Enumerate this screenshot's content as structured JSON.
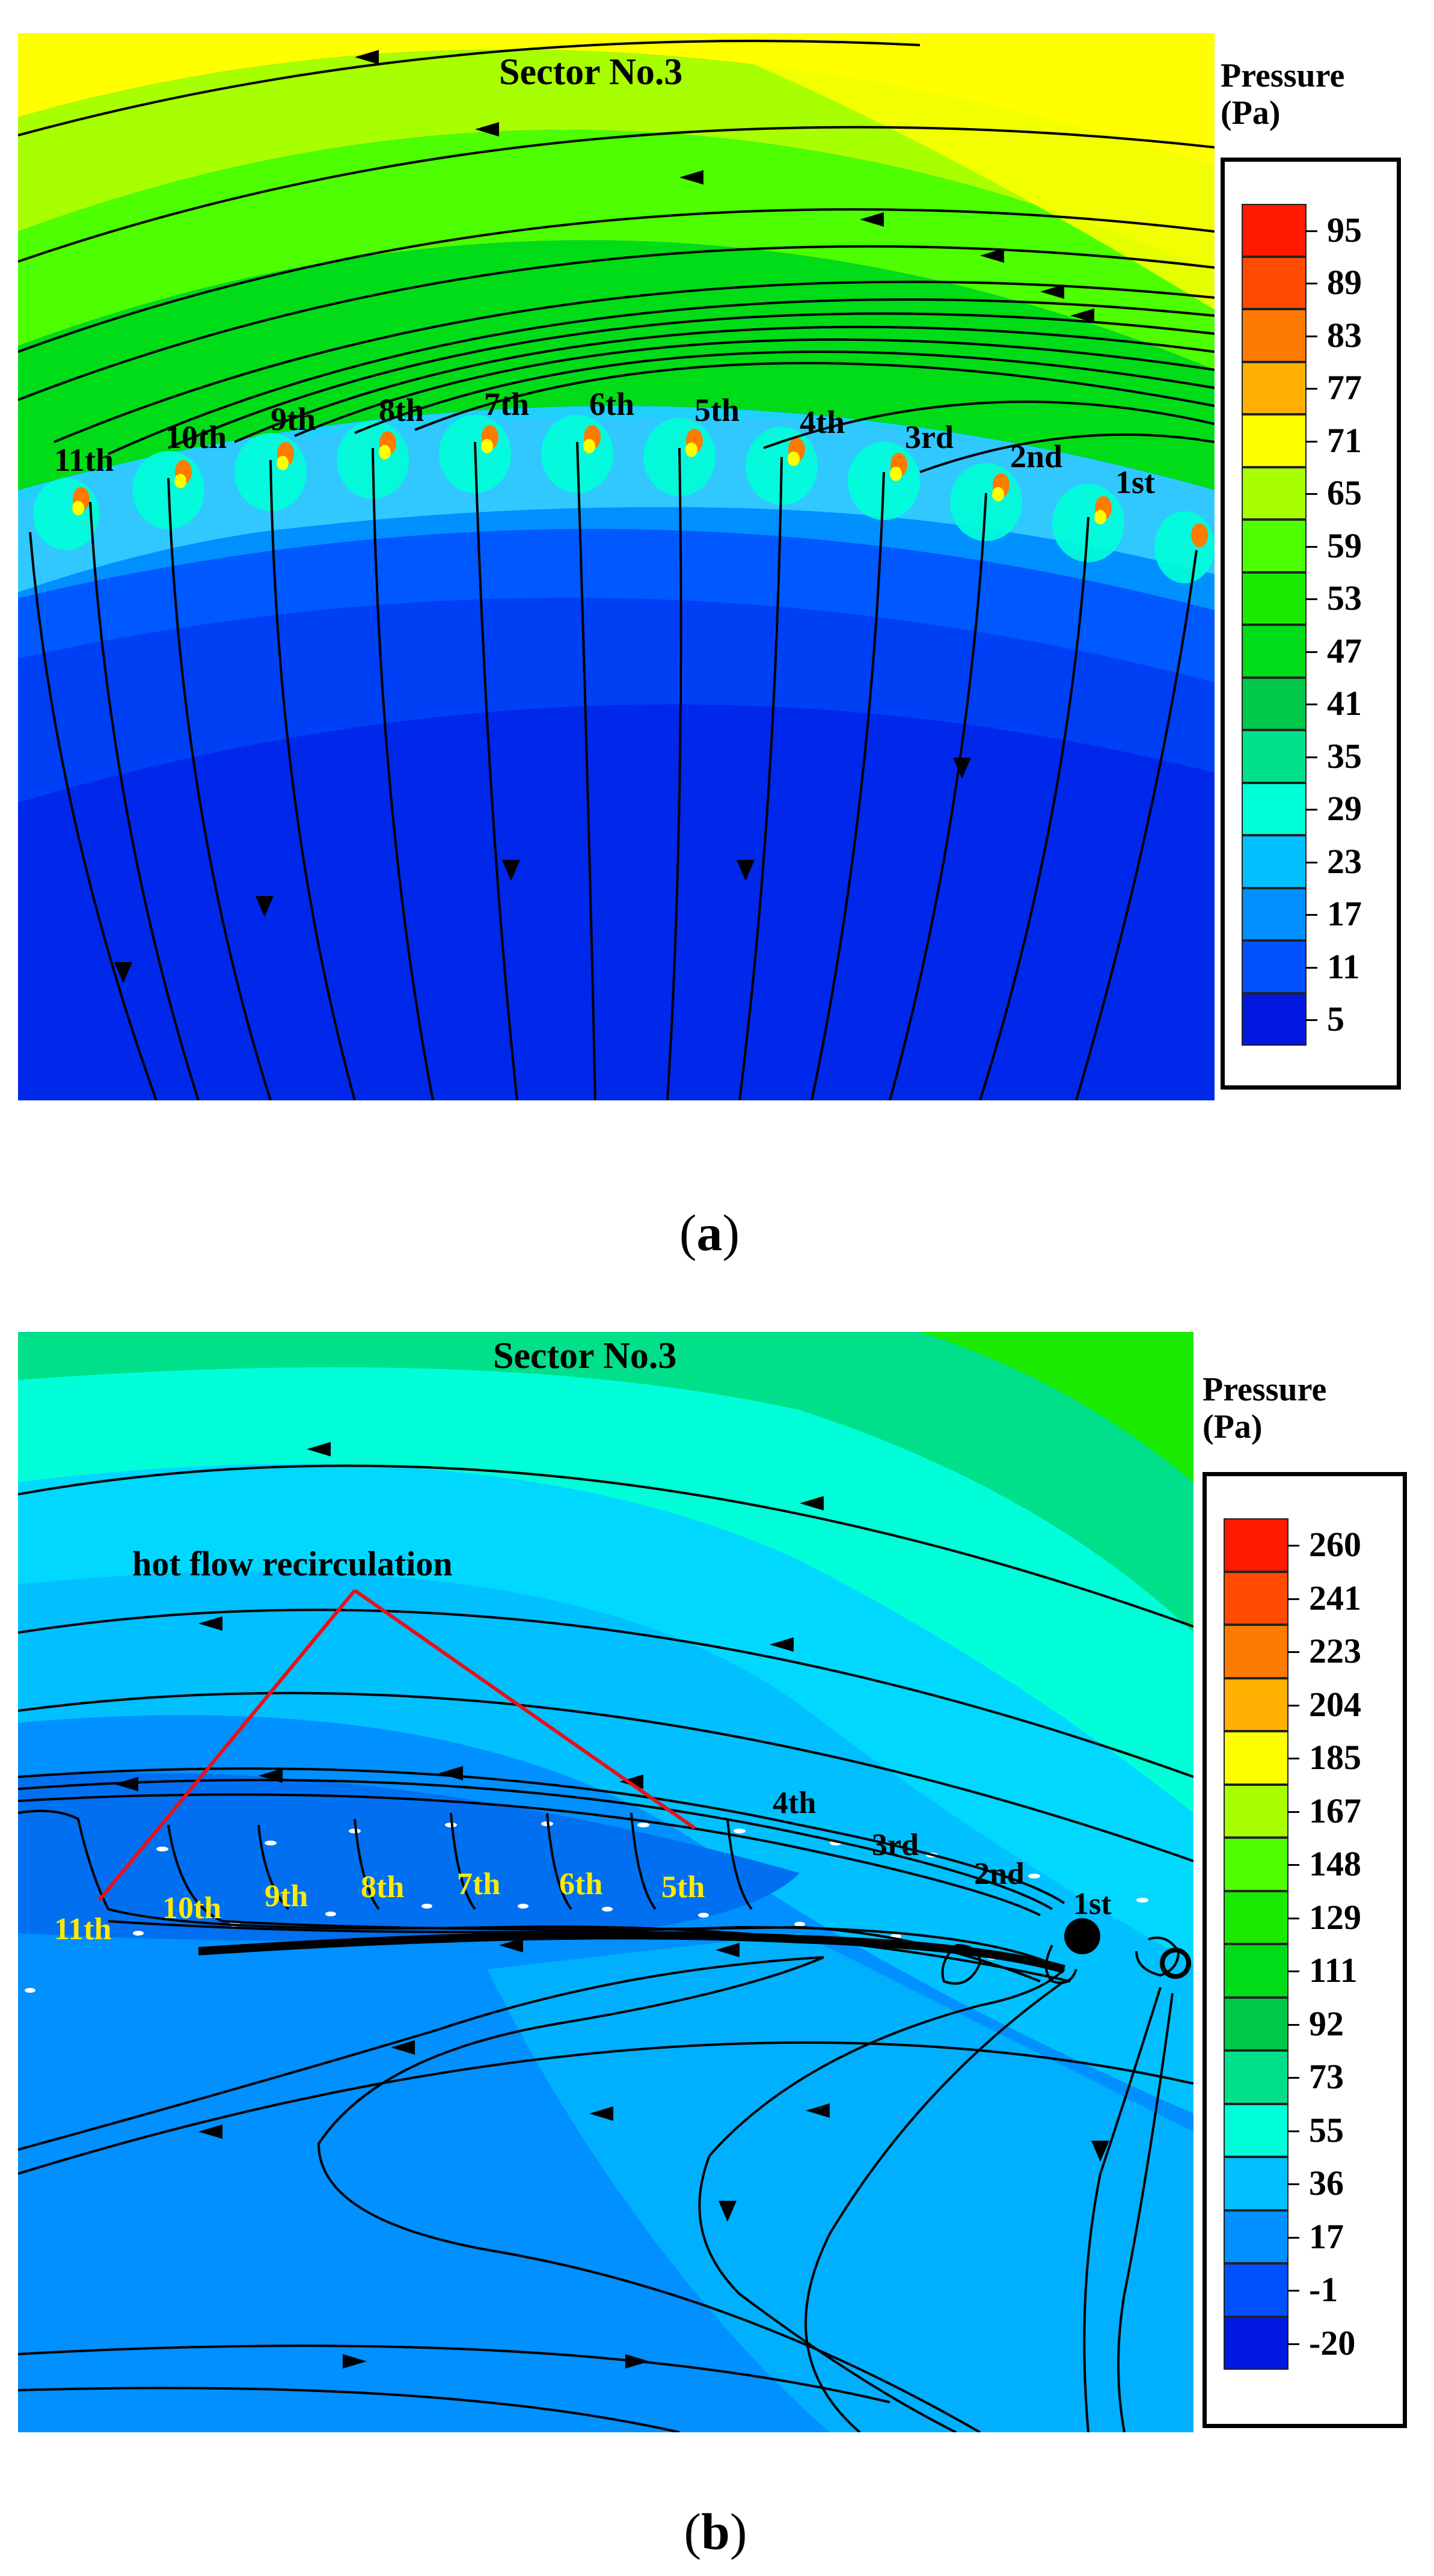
{
  "panel_a": {
    "title": "Sector No.3",
    "legend_title_line1": "Pressure",
    "legend_title_line2": "(Pa)",
    "legend_levels": [
      "95",
      "89",
      "83",
      "77",
      "71",
      "65",
      "59",
      "53",
      "47",
      "41",
      "35",
      "29",
      "23",
      "17",
      "11",
      "5"
    ],
    "legend_colors": [
      "#ff1a00",
      "#ff4a00",
      "#ff7a00",
      "#ffb000",
      "#ffff00",
      "#a8ff00",
      "#4dff00",
      "#1aea00",
      "#00dc18",
      "#00c84a",
      "#00e08a",
      "#00ffd8",
      "#00c0ff",
      "#0090ff",
      "#0050ff",
      "#0018e0"
    ],
    "ordinals": [
      "11th",
      "10th",
      "9th",
      "8th",
      "7th",
      "6th",
      "5th",
      "4th",
      "3rd",
      "2nd",
      "1st"
    ],
    "caption_letter": "a"
  },
  "panel_b": {
    "title": "Sector No.3",
    "legend_title_line1": "Pressure",
    "legend_title_line2": "(Pa)",
    "legend_levels": [
      "260",
      "241",
      "223",
      "204",
      "185",
      "167",
      "148",
      "129",
      "111",
      "92",
      "73",
      "55",
      "36",
      "17",
      "-1",
      "-20"
    ],
    "legend_colors": [
      "#ff1a00",
      "#ff4a00",
      "#ff7a00",
      "#ffb000",
      "#ffff00",
      "#a8ff00",
      "#4dff00",
      "#1aea00",
      "#00dc18",
      "#00c84a",
      "#00e08a",
      "#00ffd8",
      "#00c0ff",
      "#0090ff",
      "#0050ff",
      "#0018e0"
    ],
    "ordinals": [
      "11th",
      "10th",
      "9th",
      "8th",
      "7th",
      "6th",
      "5th",
      "4th",
      "3rd",
      "2nd",
      "1st"
    ],
    "annotation": "hot flow recirculation",
    "caption_letter": "b"
  }
}
